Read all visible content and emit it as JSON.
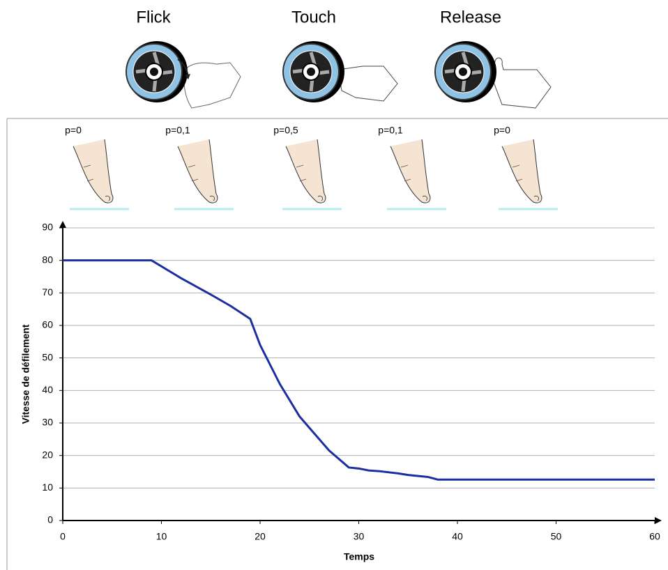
{
  "gestures": [
    "Flick",
    "Touch",
    "Release"
  ],
  "pressure_labels": [
    "p=0",
    "p=0,1",
    "p=0,5",
    "p=0,1",
    "p=0"
  ],
  "chart_data": {
    "type": "line",
    "x_label": "Temps",
    "y_label": "Vitesse de défilement",
    "x": [
      0,
      9,
      12,
      15,
      17,
      19,
      20,
      22,
      24,
      26,
      27,
      29,
      30,
      31,
      32,
      34,
      35,
      37,
      38,
      40,
      60
    ],
    "series": [
      {
        "color": "#1a2fa0",
        "values": [
          80,
          80,
          74.5,
          69.5,
          66,
          62,
          54,
          42,
          32,
          25,
          21.5,
          16.3,
          16,
          15.4,
          15.2,
          14.5,
          14,
          13.4,
          12.6,
          12.6,
          12.6
        ]
      }
    ],
    "xlim": [
      0,
      60
    ],
    "xticks": [
      0,
      10,
      20,
      30,
      40,
      50,
      60
    ],
    "ylim": [
      0,
      90
    ],
    "yticks": [
      0,
      10,
      20,
      30,
      40,
      50,
      60,
      70,
      80,
      90
    ],
    "grid": true
  }
}
